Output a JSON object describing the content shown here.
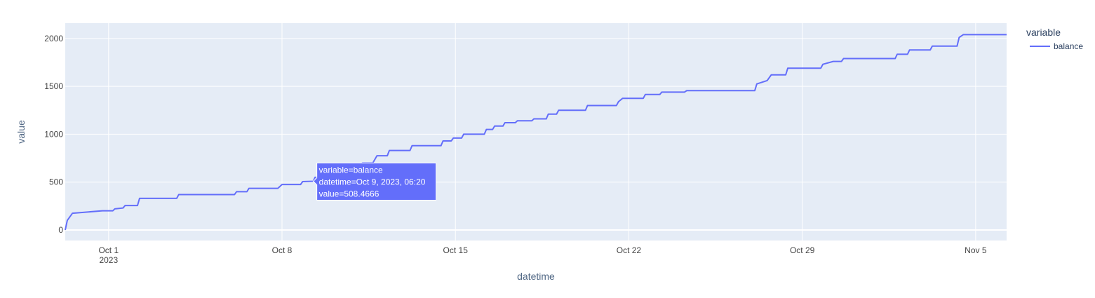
{
  "chart_data": {
    "type": "line",
    "xlabel": "datetime",
    "ylabel": "value",
    "xlim": [
      "2023-09-29T06:00",
      "2023-11-06T06:00"
    ],
    "ylim": [
      -110,
      2160
    ],
    "x_ticks": [
      {
        "value": "2023-10-01T00:00",
        "label": "Oct 1",
        "sublabel": "2023"
      },
      {
        "value": "2023-10-08T00:00",
        "label": "Oct 8",
        "sublabel": ""
      },
      {
        "value": "2023-10-15T00:00",
        "label": "Oct 15",
        "sublabel": ""
      },
      {
        "value": "2023-10-22T00:00",
        "label": "Oct 22",
        "sublabel": ""
      },
      {
        "value": "2023-10-29T00:00",
        "label": "Oct 29",
        "sublabel": ""
      },
      {
        "value": "2023-11-05T00:00",
        "label": "Nov 5",
        "sublabel": ""
      }
    ],
    "y_ticks": [
      0,
      500,
      1000,
      1500,
      2000
    ],
    "grid": true,
    "legend": {
      "title": "variable",
      "placement": "top-right"
    },
    "series": [
      {
        "name": "balance",
        "color": "#636efa",
        "points": [
          [
            "2023-09-29T06:00",
            0
          ],
          [
            "2023-09-29T08:00",
            100
          ],
          [
            "2023-09-29T13:00",
            175
          ],
          [
            "2023-09-30T18:00",
            200
          ],
          [
            "2023-10-01T04:00",
            200
          ],
          [
            "2023-10-01T06:00",
            220
          ],
          [
            "2023-10-01T14:00",
            230
          ],
          [
            "2023-10-01T16:00",
            255
          ],
          [
            "2023-10-02T04:00",
            255
          ],
          [
            "2023-10-02T06:00",
            330
          ],
          [
            "2023-10-03T18:00",
            330
          ],
          [
            "2023-10-03T20:00",
            370
          ],
          [
            "2023-10-06T02:00",
            370
          ],
          [
            "2023-10-06T04:00",
            400
          ],
          [
            "2023-10-06T14:00",
            400
          ],
          [
            "2023-10-06T16:00",
            435
          ],
          [
            "2023-10-07T20:00",
            435
          ],
          [
            "2023-10-08T00:00",
            475
          ],
          [
            "2023-10-08T18:00",
            475
          ],
          [
            "2023-10-08T20:00",
            505
          ],
          [
            "2023-10-09T06:20",
            508.4666
          ],
          [
            "2023-10-09T08:00",
            550
          ],
          [
            "2023-10-10T00:00",
            550
          ],
          [
            "2023-10-10T06:00",
            600
          ],
          [
            "2023-10-10T20:00",
            640
          ],
          [
            "2023-10-11T06:00",
            700
          ],
          [
            "2023-10-11T16:00",
            700
          ],
          [
            "2023-10-11T20:00",
            775
          ],
          [
            "2023-10-12T06:00",
            775
          ],
          [
            "2023-10-12T08:00",
            830
          ],
          [
            "2023-10-13T04:00",
            830
          ],
          [
            "2023-10-13T06:00",
            880
          ],
          [
            "2023-10-14T10:00",
            880
          ],
          [
            "2023-10-14T12:00",
            930
          ],
          [
            "2023-10-14T20:00",
            930
          ],
          [
            "2023-10-14T22:00",
            960
          ],
          [
            "2023-10-15T06:00",
            960
          ],
          [
            "2023-10-15T08:00",
            1000
          ],
          [
            "2023-10-16T04:00",
            1000
          ],
          [
            "2023-10-16T06:00",
            1050
          ],
          [
            "2023-10-16T12:00",
            1050
          ],
          [
            "2023-10-16T14:00",
            1085
          ],
          [
            "2023-10-16T22:00",
            1085
          ],
          [
            "2023-10-17T00:00",
            1120
          ],
          [
            "2023-10-17T10:00",
            1120
          ],
          [
            "2023-10-17T12:00",
            1140
          ],
          [
            "2023-10-18T02:00",
            1140
          ],
          [
            "2023-10-18T04:00",
            1160
          ],
          [
            "2023-10-18T16:00",
            1160
          ],
          [
            "2023-10-18T18:00",
            1210
          ],
          [
            "2023-10-19T02:00",
            1210
          ],
          [
            "2023-10-19T04:00",
            1250
          ],
          [
            "2023-10-20T06:00",
            1250
          ],
          [
            "2023-10-20T08:00",
            1300
          ],
          [
            "2023-10-21T12:00",
            1300
          ],
          [
            "2023-10-21T14:00",
            1340
          ],
          [
            "2023-10-21T18:00",
            1375
          ],
          [
            "2023-10-22T14:00",
            1375
          ],
          [
            "2023-10-22T16:00",
            1415
          ],
          [
            "2023-10-23T06:00",
            1415
          ],
          [
            "2023-10-23T08:00",
            1440
          ],
          [
            "2023-10-24T06:00",
            1440
          ],
          [
            "2023-10-24T08:00",
            1455
          ],
          [
            "2023-10-27T02:00",
            1455
          ],
          [
            "2023-10-27T04:00",
            1525
          ],
          [
            "2023-10-27T14:00",
            1560
          ],
          [
            "2023-10-27T18:00",
            1620
          ],
          [
            "2023-10-28T08:00",
            1620
          ],
          [
            "2023-10-28T10:00",
            1690
          ],
          [
            "2023-10-29T18:00",
            1690
          ],
          [
            "2023-10-29T20:00",
            1730
          ],
          [
            "2023-10-30T06:00",
            1760
          ],
          [
            "2023-10-30T14:00",
            1760
          ],
          [
            "2023-10-30T16:00",
            1790
          ],
          [
            "2023-11-01T18:00",
            1790
          ],
          [
            "2023-11-01T20:00",
            1835
          ],
          [
            "2023-11-02T06:00",
            1835
          ],
          [
            "2023-11-02T08:00",
            1880
          ],
          [
            "2023-11-03T04:00",
            1880
          ],
          [
            "2023-11-03T06:00",
            1920
          ],
          [
            "2023-11-04T06:00",
            1920
          ],
          [
            "2023-11-04T08:00",
            2010
          ],
          [
            "2023-11-04T12:00",
            2040
          ],
          [
            "2023-11-06T06:00",
            2040
          ]
        ]
      }
    ],
    "hover": {
      "point": [
        "2023-10-09T06:20",
        508.4666
      ],
      "lines": [
        "variable=balance",
        "datetime=Oct 9, 2023, 06:20",
        "value=508.4666"
      ]
    }
  }
}
